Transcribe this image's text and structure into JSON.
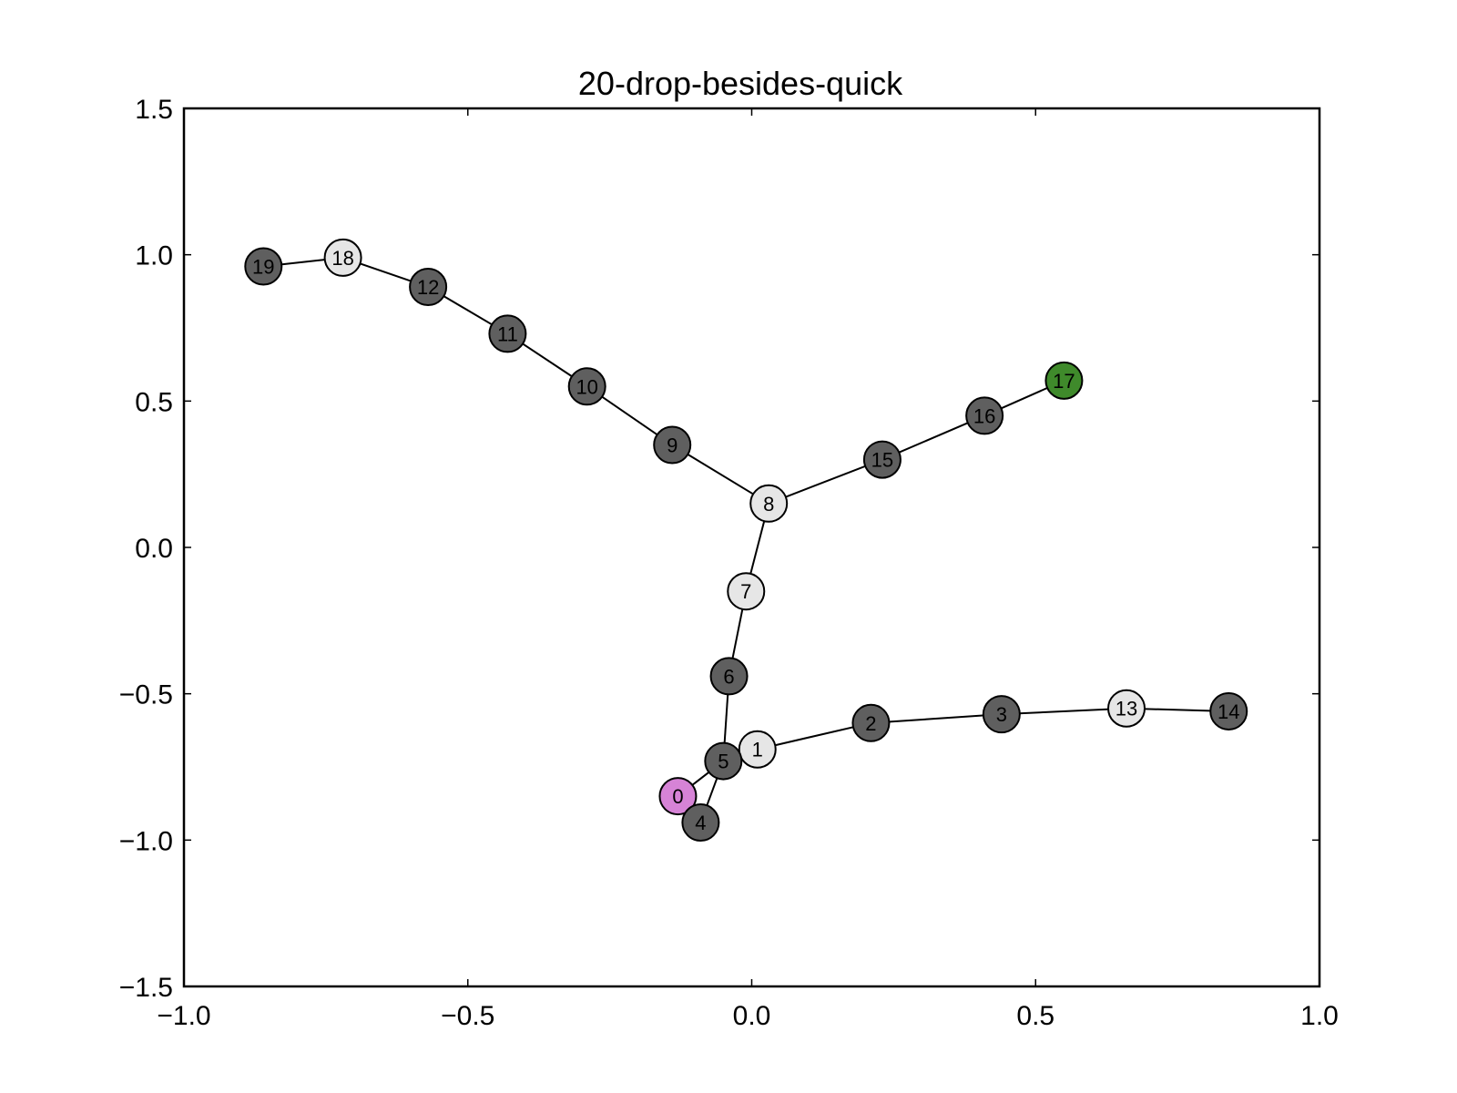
{
  "chart_data": {
    "type": "scatter",
    "title": "20-drop-besides-quick",
    "xlabel": "",
    "ylabel": "",
    "xlim": [
      -1.0,
      1.0
    ],
    "ylim": [
      -1.5,
      1.5
    ],
    "xticks": [
      -1.0,
      -0.5,
      0.0,
      0.5,
      1.0
    ],
    "xtick_labels": [
      "−1.0",
      "−0.5",
      "0.0",
      "0.5",
      "1.0"
    ],
    "yticks": [
      -1.5,
      -1.0,
      -0.5,
      0.0,
      0.5,
      1.0,
      1.5
    ],
    "ytick_labels": [
      "−1.5",
      "−1.0",
      "−0.5",
      "0.0",
      "0.5",
      "1.0",
      "1.5"
    ],
    "grid": false,
    "colors": {
      "dark": "#5f5f5f",
      "light": "#e6e6e6",
      "start": "#d683d6",
      "end": "#3f8a2b"
    },
    "nodes": [
      {
        "id": "0",
        "x": -0.13,
        "y": -0.85,
        "color": "#d683d6"
      },
      {
        "id": "1",
        "x": 0.01,
        "y": -0.69,
        "color": "#e6e6e6"
      },
      {
        "id": "2",
        "x": 0.21,
        "y": -0.6,
        "color": "#5f5f5f"
      },
      {
        "id": "3",
        "x": 0.44,
        "y": -0.57,
        "color": "#5f5f5f"
      },
      {
        "id": "4",
        "x": -0.09,
        "y": -0.94,
        "color": "#5f5f5f"
      },
      {
        "id": "5",
        "x": -0.05,
        "y": -0.73,
        "color": "#5f5f5f"
      },
      {
        "id": "6",
        "x": -0.04,
        "y": -0.44,
        "color": "#5f5f5f"
      },
      {
        "id": "7",
        "x": -0.01,
        "y": -0.15,
        "color": "#e6e6e6"
      },
      {
        "id": "8",
        "x": 0.03,
        "y": 0.15,
        "color": "#e6e6e6"
      },
      {
        "id": "9",
        "x": -0.14,
        "y": 0.35,
        "color": "#5f5f5f"
      },
      {
        "id": "10",
        "x": -0.29,
        "y": 0.55,
        "color": "#5f5f5f"
      },
      {
        "id": "11",
        "x": -0.43,
        "y": 0.73,
        "color": "#5f5f5f"
      },
      {
        "id": "12",
        "x": -0.57,
        "y": 0.89,
        "color": "#5f5f5f"
      },
      {
        "id": "13",
        "x": 0.66,
        "y": -0.55,
        "color": "#e6e6e6"
      },
      {
        "id": "14",
        "x": 0.84,
        "y": -0.56,
        "color": "#5f5f5f"
      },
      {
        "id": "15",
        "x": 0.23,
        "y": 0.3,
        "color": "#5f5f5f"
      },
      {
        "id": "16",
        "x": 0.41,
        "y": 0.45,
        "color": "#5f5f5f"
      },
      {
        "id": "17",
        "x": 0.55,
        "y": 0.57,
        "color": "#3f8a2b"
      },
      {
        "id": "18",
        "x": -0.72,
        "y": 0.99,
        "color": "#e6e6e6"
      },
      {
        "id": "19",
        "x": -0.86,
        "y": 0.96,
        "color": "#5f5f5f"
      }
    ],
    "edges": [
      [
        "0",
        "5"
      ],
      [
        "4",
        "5"
      ],
      [
        "5",
        "1"
      ],
      [
        "5",
        "6"
      ],
      [
        "1",
        "2"
      ],
      [
        "2",
        "3"
      ],
      [
        "3",
        "13"
      ],
      [
        "13",
        "14"
      ],
      [
        "6",
        "7"
      ],
      [
        "7",
        "8"
      ],
      [
        "8",
        "9"
      ],
      [
        "9",
        "10"
      ],
      [
        "10",
        "11"
      ],
      [
        "11",
        "12"
      ],
      [
        "12",
        "18"
      ],
      [
        "18",
        "19"
      ],
      [
        "8",
        "15"
      ],
      [
        "15",
        "16"
      ],
      [
        "16",
        "17"
      ]
    ]
  }
}
